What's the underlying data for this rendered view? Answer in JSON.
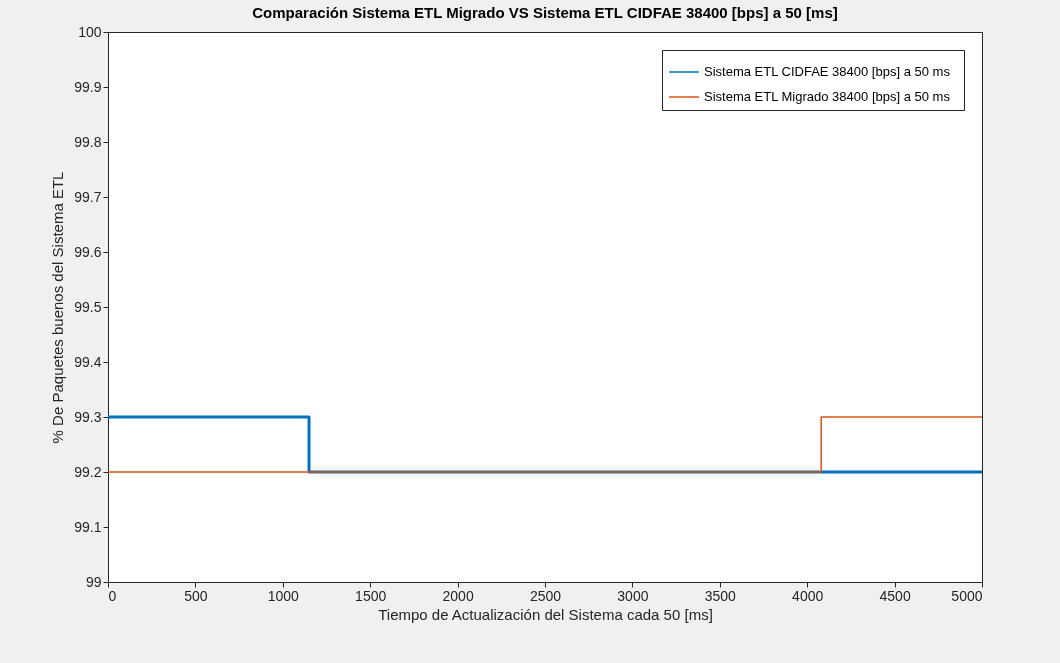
{
  "chart_data": {
    "type": "step",
    "title": "Comparación Sistema ETL Migrado  VS Sistema ETL CIDFAE 38400 [bps] a 50 [ms]",
    "xlabel": "Tiempo de Actualización del Sistema cada 50 [ms]",
    "ylabel": "% De Paquetes buenos del Sistema ETL",
    "series": [
      {
        "name": "Sistema ETL CIDFAE 38400 [bps]  a 50 ms",
        "color": "#0072bd",
        "x": [
          0,
          1150,
          5000
        ],
        "values": [
          99.3,
          99.2,
          99.2
        ]
      },
      {
        "name": "Sistema ETL  Migrado 38400 [bps]  a 50 ms",
        "color": "#d95319",
        "x": [
          0,
          4080,
          5000
        ],
        "values": [
          99.2,
          99.3,
          99.3
        ]
      }
    ],
    "xlim": [
      0,
      5000
    ],
    "xticks": [
      0,
      500,
      1000,
      1500,
      2000,
      2500,
      3000,
      3500,
      4000,
      4500,
      5000
    ],
    "ylim": [
      99,
      100
    ],
    "yticks": [
      99,
      99.1,
      99.2,
      99.3,
      99.4,
      99.5,
      99.6,
      99.7,
      99.8,
      99.9,
      100
    ],
    "grid": false,
    "legend": "top right"
  }
}
